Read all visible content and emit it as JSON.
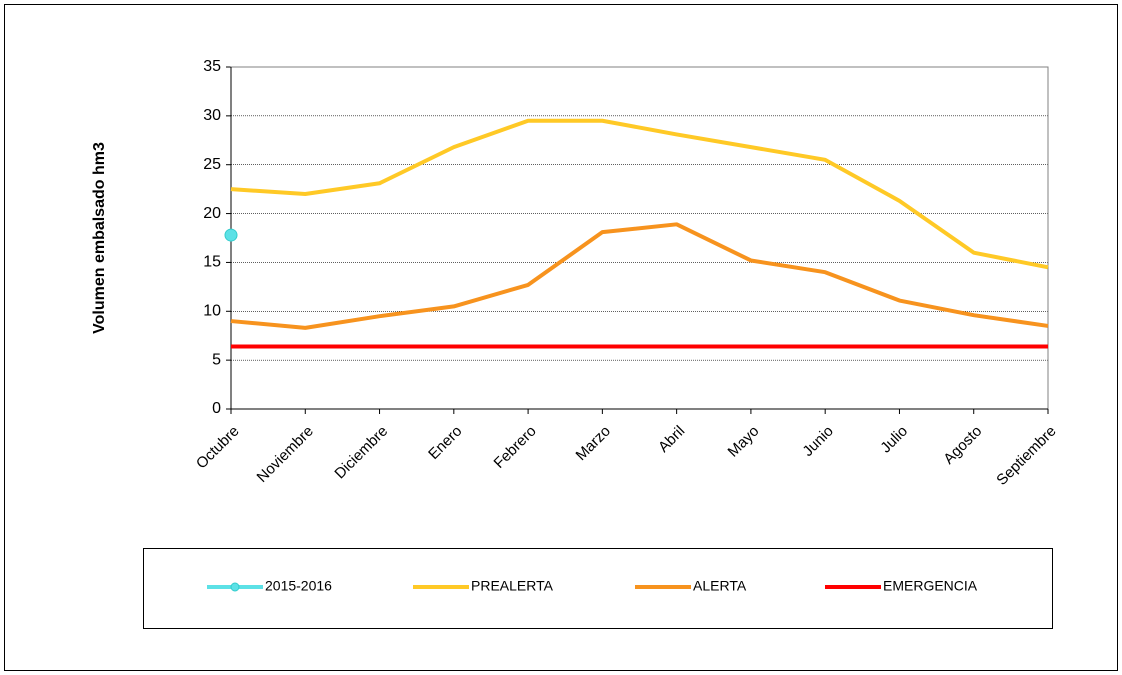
{
  "chart_data": {
    "type": "line",
    "y_label": "Volumen embalsado hm3",
    "categories": [
      "Octubre",
      "Noviembre",
      "Diciembre",
      "Enero",
      "Febrero",
      "Marzo",
      "Abril",
      "Mayo",
      "Junio",
      "Julio",
      "Agosto",
      "Septiembre"
    ],
    "series": [
      {
        "name": "2015-2016",
        "color": "#5ce1e6",
        "marker": true,
        "values": [
          17.8,
          null,
          null,
          null,
          null,
          null,
          null,
          null,
          null,
          null,
          null,
          null
        ]
      },
      {
        "name": "PREALERTA",
        "color": "#ffc926",
        "values": [
          22.5,
          22,
          23.1,
          26.8,
          29.5,
          29.5,
          28.1,
          26.8,
          25.5,
          21.3,
          16,
          14.5
        ]
      },
      {
        "name": "ALERTA",
        "color": "#f7931e",
        "values": [
          9,
          8.3,
          9.5,
          10.5,
          12.7,
          18.1,
          18.9,
          15.2,
          14,
          11.1,
          9.6,
          8.5
        ]
      },
      {
        "name": "EMERGENCIA",
        "color": "#ff0000",
        "values": [
          6.4,
          6.4,
          6.4,
          6.4,
          6.4,
          6.4,
          6.4,
          6.4,
          6.4,
          6.4,
          6.4,
          6.4
        ]
      }
    ],
    "ylim": [
      0,
      35
    ],
    "yticks": [
      0,
      5,
      10,
      15,
      20,
      25,
      30,
      35
    ],
    "grid": true,
    "legend": "bottom"
  }
}
